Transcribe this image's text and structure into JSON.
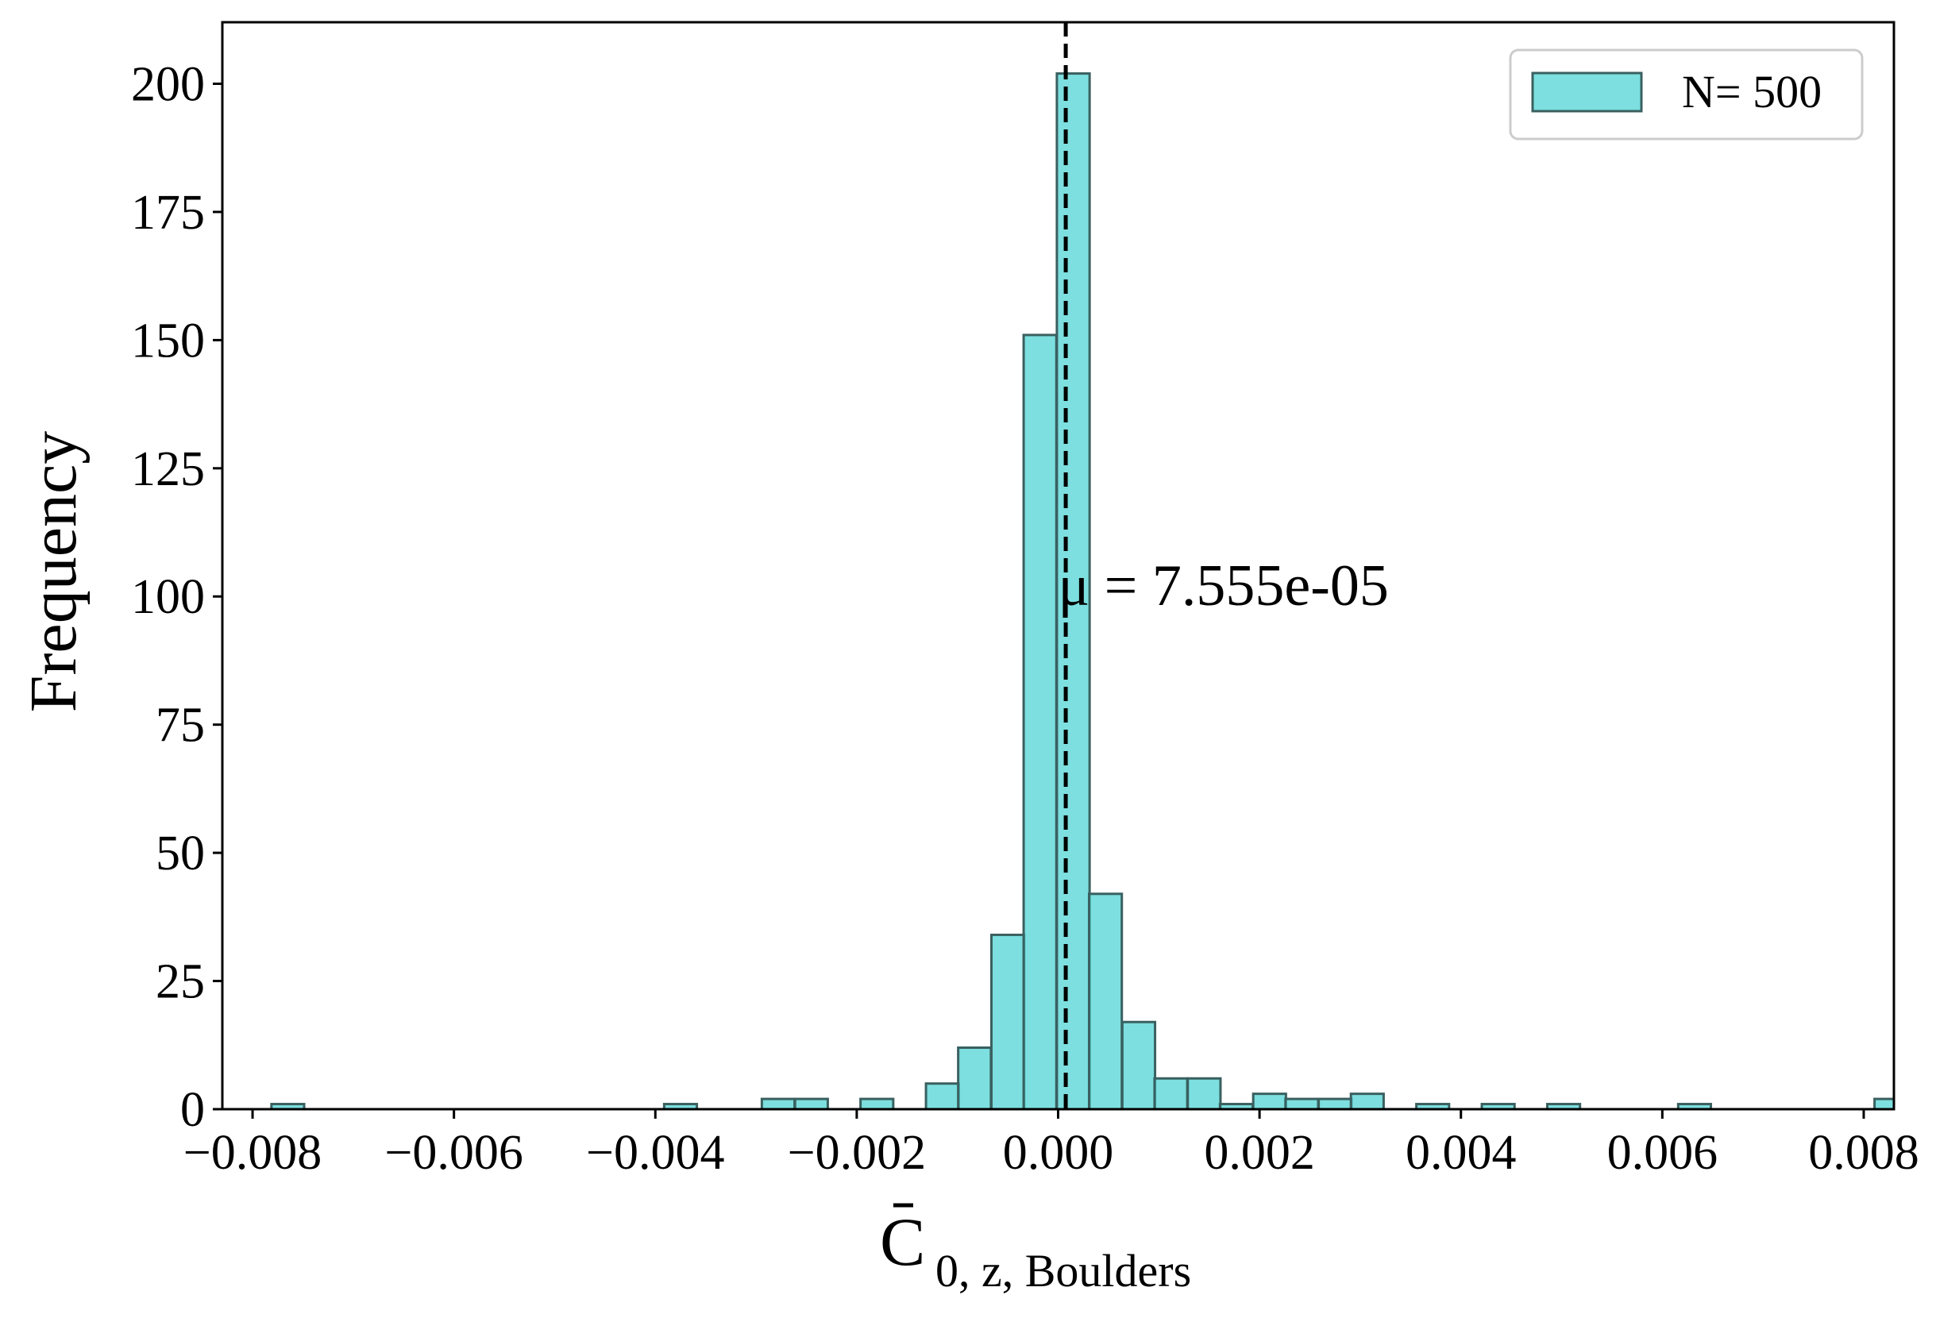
{
  "chart_data": {
    "type": "bar",
    "subtype": "histogram",
    "xlabel_main": "C",
    "xlabel_sub": "0, z, Boulders",
    "xlabel_accent": "bar",
    "ylabel": "Frequency",
    "xlim": [
      -0.0083,
      0.0083
    ],
    "ylim": [
      0,
      212
    ],
    "bin_width": 0.000325,
    "xticks": [
      -0.008,
      -0.006,
      -0.004,
      -0.002,
      0.0,
      0.002,
      0.004,
      0.006,
      0.008
    ],
    "xtick_labels": [
      "−0.008",
      "−0.006",
      "−0.004",
      "−0.002",
      "0.000",
      "0.002",
      "0.004",
      "0.006",
      "0.008"
    ],
    "yticks": [
      0,
      25,
      50,
      75,
      100,
      125,
      150,
      175,
      200
    ],
    "ytick_labels": [
      "0",
      "25",
      "50",
      "75",
      "100",
      "125",
      "150",
      "175",
      "200"
    ],
    "bins": [
      {
        "x": -0.00765,
        "count": 1
      },
      {
        "x": -0.00375,
        "count": 1
      },
      {
        "x": -0.00278,
        "count": 2
      },
      {
        "x": -0.00245,
        "count": 2
      },
      {
        "x": -0.0018,
        "count": 2
      },
      {
        "x": -0.00115,
        "count": 5
      },
      {
        "x": -0.00083,
        "count": 12
      },
      {
        "x": -0.0005,
        "count": 34
      },
      {
        "x": -0.00018,
        "count": 151
      },
      {
        "x": 0.00015,
        "count": 202
      },
      {
        "x": 0.00047,
        "count": 42
      },
      {
        "x": 0.0008,
        "count": 17
      },
      {
        "x": 0.00112,
        "count": 6
      },
      {
        "x": 0.00145,
        "count": 6
      },
      {
        "x": 0.00177,
        "count": 1
      },
      {
        "x": 0.0021,
        "count": 3
      },
      {
        "x": 0.00242,
        "count": 2
      },
      {
        "x": 0.00275,
        "count": 2
      },
      {
        "x": 0.00307,
        "count": 3
      },
      {
        "x": 0.00372,
        "count": 1
      },
      {
        "x": 0.00437,
        "count": 1
      },
      {
        "x": 0.00502,
        "count": 1
      },
      {
        "x": 0.00632,
        "count": 1
      },
      {
        "x": 0.00827,
        "count": 2
      }
    ],
    "mean_line": {
      "x": 7.555e-05,
      "style": "dashed",
      "color": "#000000"
    },
    "annotation": {
      "text": "μ = 7.555e-05",
      "x": 0.0,
      "y": 103
    },
    "legend": {
      "position": "top-right",
      "label": "N= 500"
    },
    "colors": {
      "bar_fill": "#40d0d0",
      "bar_fill_opacity": 0.68,
      "bar_edge": "#3a6060"
    },
    "grid": false
  }
}
